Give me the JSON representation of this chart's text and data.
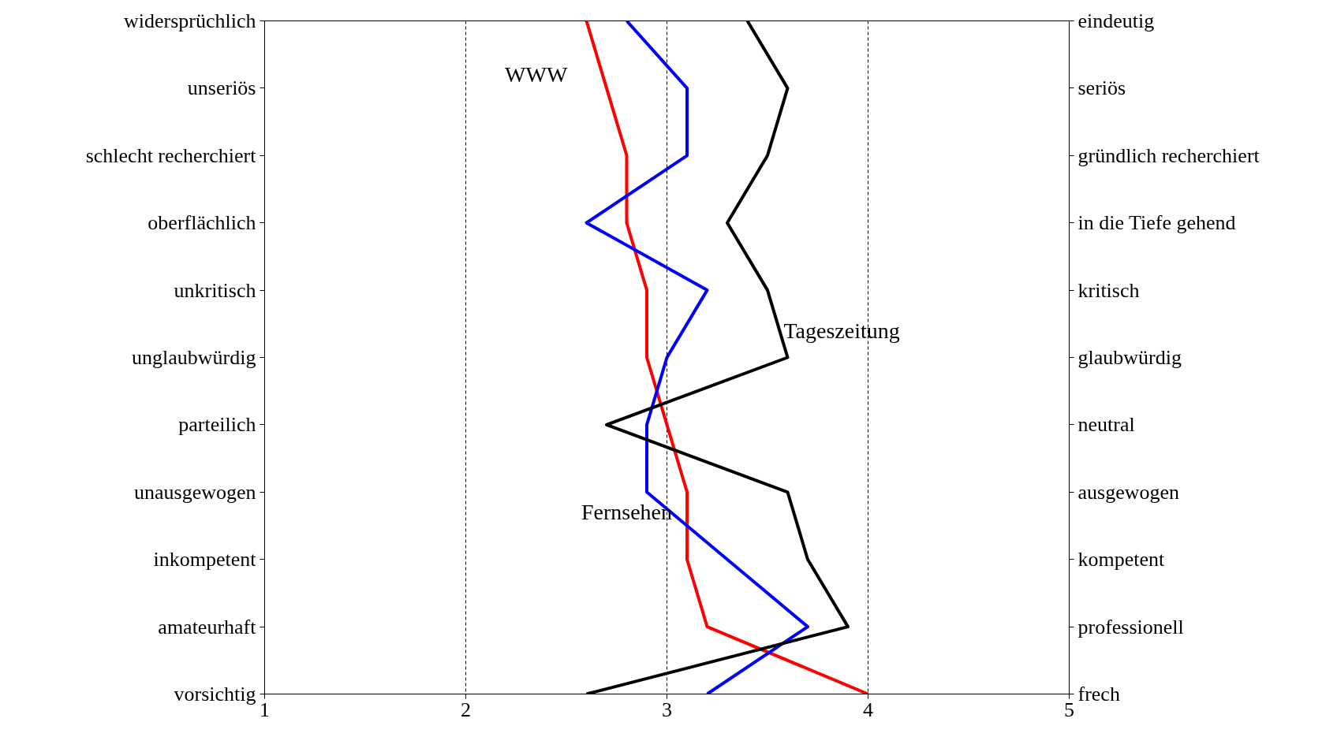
{
  "chart_data": {
    "type": "line",
    "orientation": "horizontal",
    "categories": [
      "widersprüchlich",
      "unseriös",
      "schlecht recherchiert",
      "oberflächlich",
      "unkritisch",
      "unglaubwürdig",
      "parteilich",
      "unausgewogen",
      "inkompetent",
      "amateurhaft",
      "vorsichtig"
    ],
    "y2_categories": [
      "eindeutig",
      "seriös",
      "gründlich recherchiert",
      "in die Tiefe gehend",
      "kritisch",
      "glaubwürdig",
      "neutral",
      "ausgewogen",
      "kompetent",
      "professionell",
      "frech"
    ],
    "series": [
      {
        "name": "WWW",
        "color": "#ff0000",
        "values": [
          2.6,
          2.7,
          2.8,
          2.8,
          2.9,
          2.9,
          3.0,
          3.1,
          3.1,
          3.2,
          4.0
        ]
      },
      {
        "name": "Fernsehen",
        "color": "#0000ff",
        "values": [
          2.8,
          3.1,
          3.1,
          2.6,
          3.2,
          3.0,
          2.9,
          2.9,
          3.3,
          3.7,
          3.2
        ]
      },
      {
        "name": "Tageszeitung",
        "color": "#000000",
        "values": [
          3.4,
          3.6,
          3.5,
          3.3,
          3.5,
          3.6,
          2.7,
          3.6,
          3.7,
          3.9,
          2.6
        ]
      }
    ],
    "xlim": [
      1,
      5
    ],
    "xticks": [
      1,
      2,
      3,
      4,
      5
    ],
    "grid": "x",
    "line_style": "solid",
    "marker": "none"
  }
}
